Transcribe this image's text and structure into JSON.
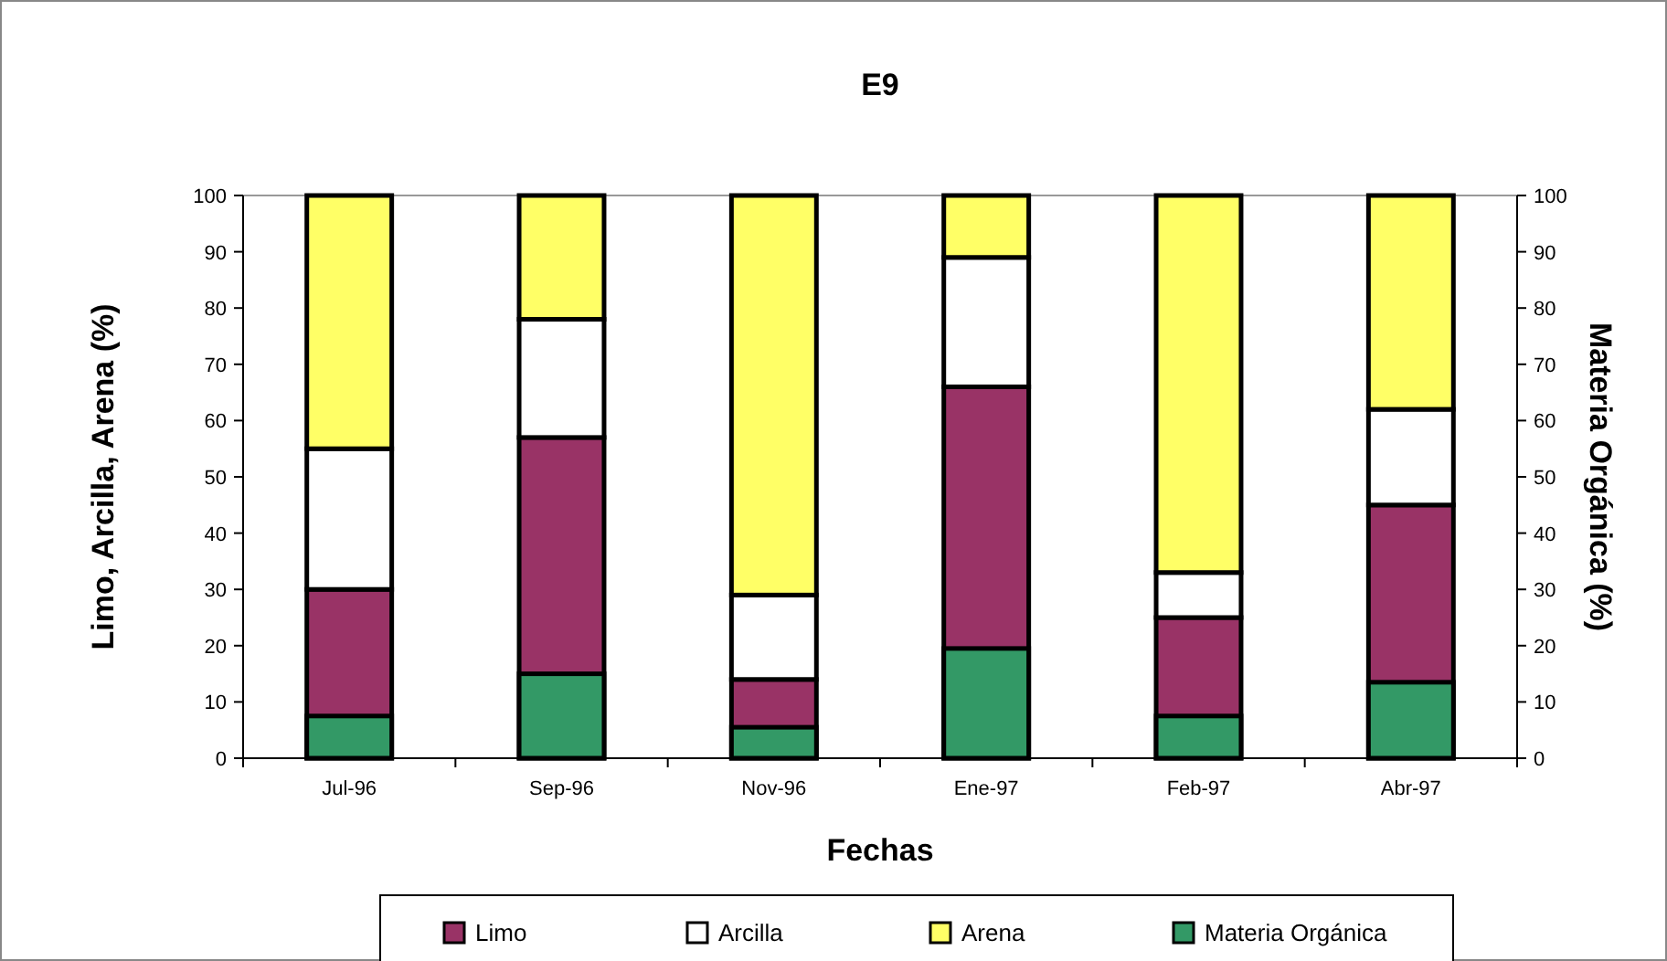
{
  "chart_data": {
    "type": "bar",
    "title": "E9",
    "xlabel": "Fechas",
    "ylabel": "Limo, Arcilla, Arena (%)",
    "y2label": "Materia Orgánica (%)",
    "categories": [
      "Jul-96",
      "Sep-96",
      "Nov-96",
      "Ene-97",
      "Feb-97",
      "Abr-97"
    ],
    "stacked": true,
    "series": [
      {
        "name": "Limo",
        "color": "#993366",
        "values": [
          30,
          57,
          14,
          66,
          25,
          45
        ]
      },
      {
        "name": "Arcilla",
        "color": "#ffffff",
        "values": [
          25,
          21,
          15,
          23,
          8,
          17
        ]
      },
      {
        "name": "Arena",
        "color": "#ffff66",
        "values": [
          45,
          22,
          71,
          11,
          67,
          38
        ]
      },
      {
        "name": "Materia Orgánica",
        "color": "#339966",
        "axis": "y2",
        "values": [
          7.5,
          15,
          5.5,
          19.5,
          7.5,
          13.5
        ]
      }
    ],
    "ylim": [
      0,
      100
    ],
    "yticks": [
      0,
      10,
      20,
      30,
      40,
      50,
      60,
      70,
      80,
      90,
      100
    ],
    "y2lim": [
      0,
      100
    ],
    "y2ticks": [
      0,
      10,
      20,
      30,
      40,
      50,
      60,
      70,
      80,
      90,
      100
    ],
    "grid": false,
    "legend": "bottom"
  }
}
